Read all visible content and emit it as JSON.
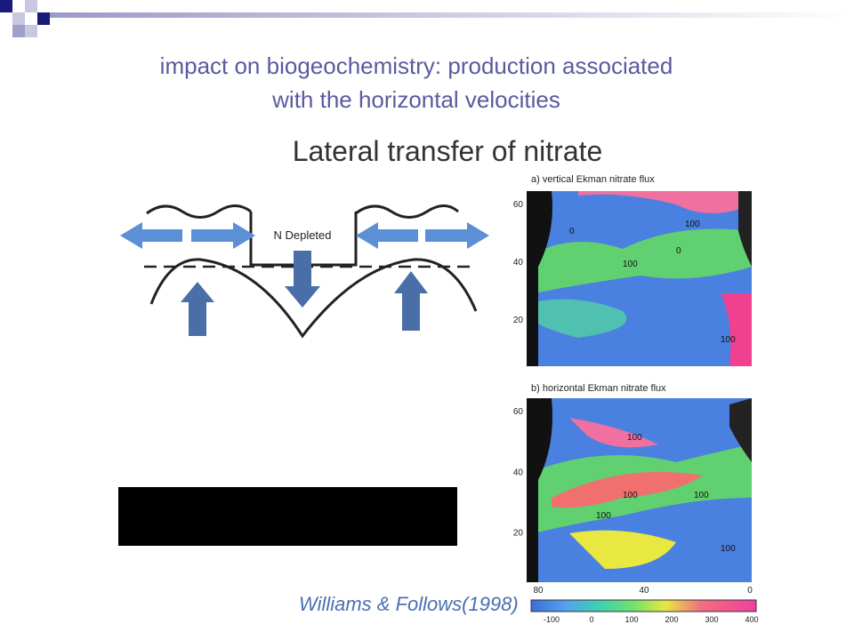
{
  "header": {
    "title_lines": [
      "impact on biogeochemistry: production associated",
      "with the horizontal velocities"
    ]
  },
  "subtitle": "Lateral transfer of nitrate",
  "diagram": {
    "label": "N Depleted"
  },
  "maps": [
    {
      "title": "a) vertical Ekman nitrate flux",
      "lat_labels": [
        "60",
        "40",
        "20"
      ],
      "contour_labels": [
        "100",
        "0",
        "0",
        "100",
        "100"
      ]
    },
    {
      "title": "b) horizontal Ekman nitrate flux",
      "lat_labels": [
        "60",
        "40",
        "20"
      ],
      "lon_labels": [
        "80",
        "40",
        "0"
      ],
      "contour_labels": [
        "100",
        "100",
        "100",
        "100",
        "100"
      ]
    }
  ],
  "colorbar": {
    "labels": [
      "-100",
      "0",
      "100",
      "200",
      "300",
      "400"
    ]
  },
  "citation": "Williams & Follows(1998)"
}
